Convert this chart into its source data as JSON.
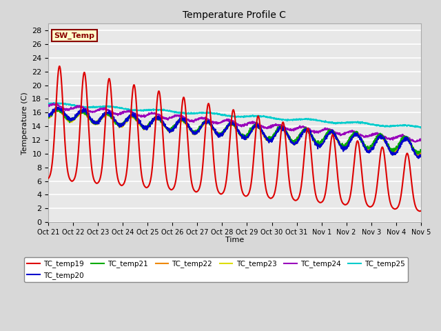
{
  "title": "Temperature Profile C",
  "xlabel": "Time",
  "ylabel": "Temperature (C)",
  "ylim": [
    0,
    29
  ],
  "xlim": [
    0,
    15
  ],
  "background_color": "#d8d8d8",
  "plot_bg": "#e8e8e8",
  "grid_color": "white",
  "x_tick_labels": [
    "Oct 21",
    "Oct 22",
    "Oct 23",
    "Oct 24",
    "Oct 25",
    "Oct 26",
    "Oct 27",
    "Oct 28",
    "Oct 29",
    "Oct 30",
    "Oct 31",
    "Nov 1",
    "Nov 2",
    "Nov 3",
    "Nov 4",
    "Nov 5"
  ],
  "annotation": "SW_Temp",
  "series_colors": {
    "TC_temp19": "#dd0000",
    "TC_temp20": "#0000cc",
    "TC_temp21": "#00aa00",
    "TC_temp22": "#ee8800",
    "TC_temp23": "#dddd00",
    "TC_temp24": "#9900bb",
    "TC_temp25": "#00cccc"
  },
  "legend_order": [
    "TC_temp19",
    "TC_temp20",
    "TC_temp21",
    "TC_temp22",
    "TC_temp23",
    "TC_temp24",
    "TC_temp25"
  ]
}
